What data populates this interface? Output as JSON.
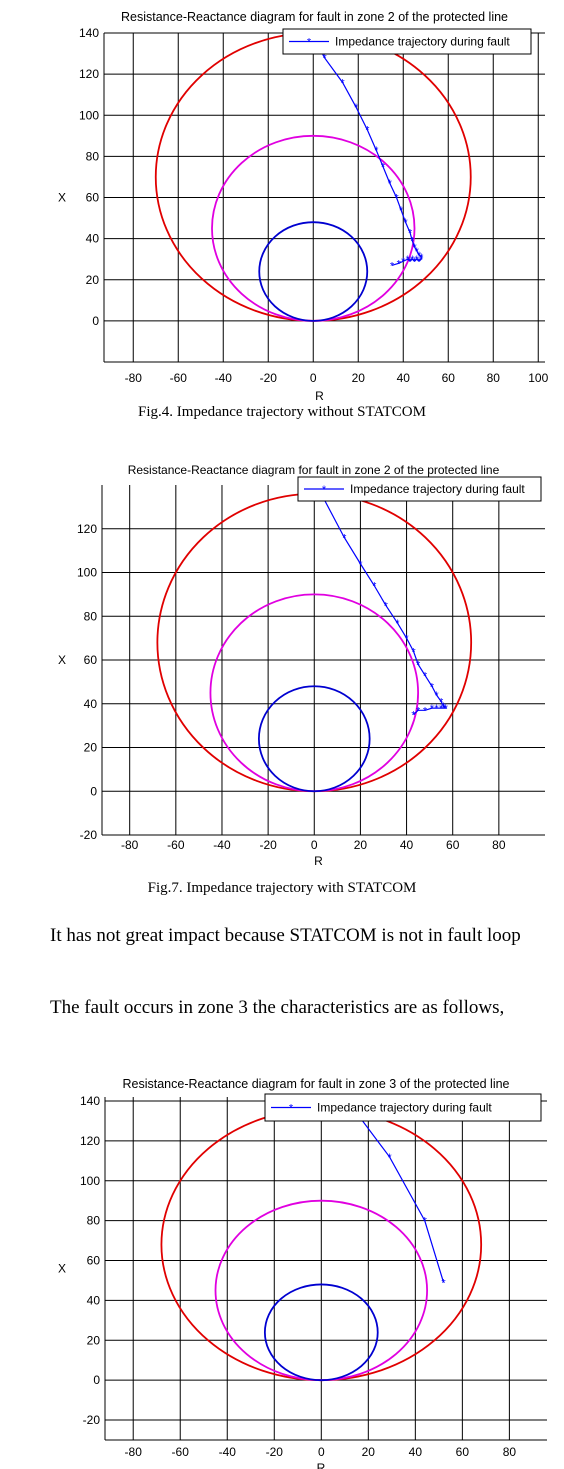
{
  "chart_data": [
    {
      "type": "line",
      "title": "Resistance-Reactance diagram for fault in zone 2 of the protected line",
      "xlabel": "R",
      "ylabel": "X",
      "xlim": [
        -93,
        103
      ],
      "ylim": [
        -20,
        140
      ],
      "xticks": [
        -80,
        -60,
        -40,
        -20,
        0,
        20,
        40,
        60,
        80,
        100
      ],
      "yticks": [
        0,
        20,
        40,
        60,
        80,
        100,
        120,
        140
      ],
      "grid": true,
      "legend_position": "top-right",
      "legend": [
        "Impedance trajectory during fault"
      ],
      "circles": [
        {
          "color": "#e00000",
          "cx": 0,
          "cy": 70,
          "r": 70
        },
        {
          "color": "#e000e0",
          "cx": 0,
          "cy": 45,
          "r": 45
        },
        {
          "color": "#0000d0",
          "cx": 0,
          "cy": 24,
          "r": 24
        }
      ],
      "series": [
        {
          "name": "Impedance trajectory during fault",
          "color": "#0000ff",
          "x": [
            -5,
            5,
            13,
            19,
            24,
            28,
            31,
            34,
            37,
            39,
            41,
            43,
            44,
            45,
            46,
            47,
            48,
            48,
            47,
            46,
            45,
            44,
            43,
            42,
            40,
            38,
            35
          ],
          "y": [
            150,
            128,
            116,
            104,
            93,
            83,
            75,
            67,
            60,
            54,
            48,
            43,
            39,
            36,
            34,
            32,
            31,
            30,
            29,
            30,
            29,
            30,
            29,
            30,
            29,
            28,
            27
          ]
        }
      ]
    },
    {
      "type": "line",
      "title": "Resistance-Reactance diagram for fault in zone 2 of the protected line",
      "xlabel": "R",
      "ylabel": "X",
      "xlim": [
        -92,
        100
      ],
      "ylim": [
        -20,
        140
      ],
      "xticks": [
        -80,
        -60,
        -40,
        -20,
        0,
        20,
        40,
        60,
        80
      ],
      "yticks": [
        -20,
        0,
        20,
        40,
        60,
        80,
        100,
        120
      ],
      "grid": true,
      "legend_position": "top-right",
      "legend": [
        "Impedance trajectory during fault"
      ],
      "circles": [
        {
          "color": "#e00000",
          "cx": 0,
          "cy": 68,
          "r": 68
        },
        {
          "color": "#e000e0",
          "cx": 0,
          "cy": 45,
          "r": 45
        },
        {
          "color": "#0000d0",
          "cx": 0,
          "cy": 24,
          "r": 24
        }
      ],
      "series": [
        {
          "name": "Impedance trajectory during fault",
          "color": "#0000ff",
          "x": [
            0,
            13,
            20,
            26,
            31,
            36,
            40,
            43,
            45,
            48,
            51,
            53,
            55,
            56,
            57,
            56,
            55,
            53,
            51,
            48,
            45,
            43
          ],
          "y": [
            142,
            116,
            104,
            94,
            85,
            77,
            70,
            64,
            58,
            53,
            48,
            44,
            41,
            39,
            38,
            38,
            38,
            38,
            38,
            37,
            37,
            35
          ]
        }
      ]
    },
    {
      "type": "line",
      "title": "Resistance-Reactance diagram for fault in zone 3 of the protected line",
      "xlabel": "R",
      "ylabel": "X",
      "xlim": [
        -92,
        96
      ],
      "ylim": [
        -30,
        142
      ],
      "xticks": [
        -80,
        -60,
        -40,
        -20,
        0,
        20,
        40,
        60,
        80
      ],
      "yticks": [
        -20,
        0,
        20,
        40,
        60,
        80,
        100,
        120,
        140
      ],
      "grid": true,
      "legend_position": "top-right",
      "legend": [
        "Impedance trajectory during fault"
      ],
      "circles": [
        {
          "color": "#e00000",
          "cx": 0,
          "cy": 68,
          "r": 68
        },
        {
          "color": "#e000e0",
          "cx": 0,
          "cy": 45,
          "r": 45
        },
        {
          "color": "#0000d0",
          "cx": 0,
          "cy": 24,
          "r": 24
        }
      ],
      "series": [
        {
          "name": "Impedance trajectory during fault",
          "color": "#0000ff",
          "x": [
            8,
            29,
            44,
            52
          ],
          "y": [
            145,
            112,
            80,
            49
          ]
        }
      ]
    }
  ],
  "captions": {
    "fig4": "Fig.4. Impedance trajectory without STATCOM",
    "fig7": "Fig.7. Impedance trajectory with STATCOM"
  },
  "text": {
    "para1": "It has not great impact because STATCOM is not in fault loop",
    "para2": "The fault occurs in zone 3 the characteristics are as follows,"
  }
}
